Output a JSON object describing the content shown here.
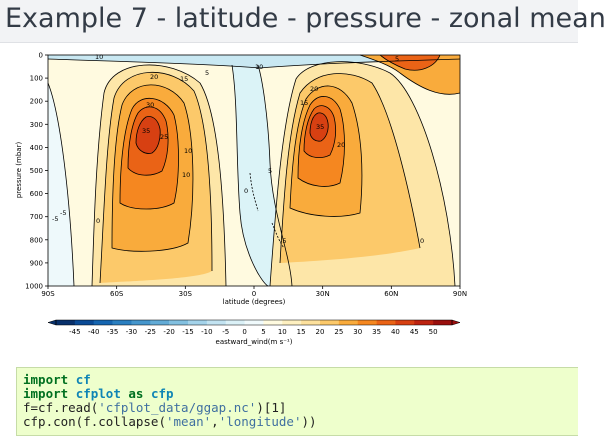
{
  "header": {
    "title": "Example 7 - latitude - pressure - zonal mean"
  },
  "plot": {
    "y_axis_label": "pressure (mbar)",
    "x_axis_label": "latitude (degrees)",
    "y_ticks": [
      "0",
      "100",
      "200",
      "300",
      "400",
      "500",
      "600",
      "700",
      "800",
      "900",
      "1000"
    ],
    "x_ticks": [
      "90S",
      "60S",
      "30S",
      "0",
      "30N",
      "60N",
      "90N"
    ],
    "contour_labels": [
      {
        "text": "10"
      },
      {
        "text": "20"
      },
      {
        "text": "15"
      },
      {
        "text": "30"
      },
      {
        "text": "35"
      },
      {
        "text": "25"
      },
      {
        "text": "10"
      },
      {
        "text": "5"
      },
      {
        "text": "10"
      },
      {
        "text": "20"
      },
      {
        "text": "15"
      },
      {
        "text": "35"
      },
      {
        "text": "5"
      },
      {
        "text": "5"
      },
      {
        "text": "-5"
      },
      {
        "text": "0"
      },
      {
        "text": "0"
      },
      {
        "text": "10"
      },
      {
        "text": "20"
      },
      {
        "text": "-5"
      },
      {
        "text": "0"
      },
      {
        "text": "-5"
      }
    ]
  },
  "colorbar": {
    "label": "eastward_wind(m s⁻¹)",
    "ticks": [
      "-45",
      "-40",
      "-35",
      "-30",
      "-25",
      "-20",
      "-15",
      "-10",
      "-5",
      "0",
      "5",
      "10",
      "15",
      "20",
      "25",
      "30",
      "35",
      "40",
      "45",
      "50"
    ],
    "colors": [
      "#08306b",
      "#0a4a95",
      "#1565b0",
      "#2a7fc0",
      "#4596cc",
      "#62abd6",
      "#82c0e0",
      "#a4d3ea",
      "#c2e3f1",
      "#dbf1f7",
      "#f0fafc",
      "#fffbe0",
      "#fef0c0",
      "#fde19d",
      "#fcc96a",
      "#f9ab3c",
      "#f58720",
      "#ea6316",
      "#d74012",
      "#bd2310",
      "#9a0f0d"
    ]
  },
  "code": {
    "lines": [
      "import cf",
      "import cfplot as cfp",
      "f=cf.read('cfplot_data/ggap.nc')[1]",
      "cfp.con(f.collapse('mean','longitude'))"
    ]
  }
}
